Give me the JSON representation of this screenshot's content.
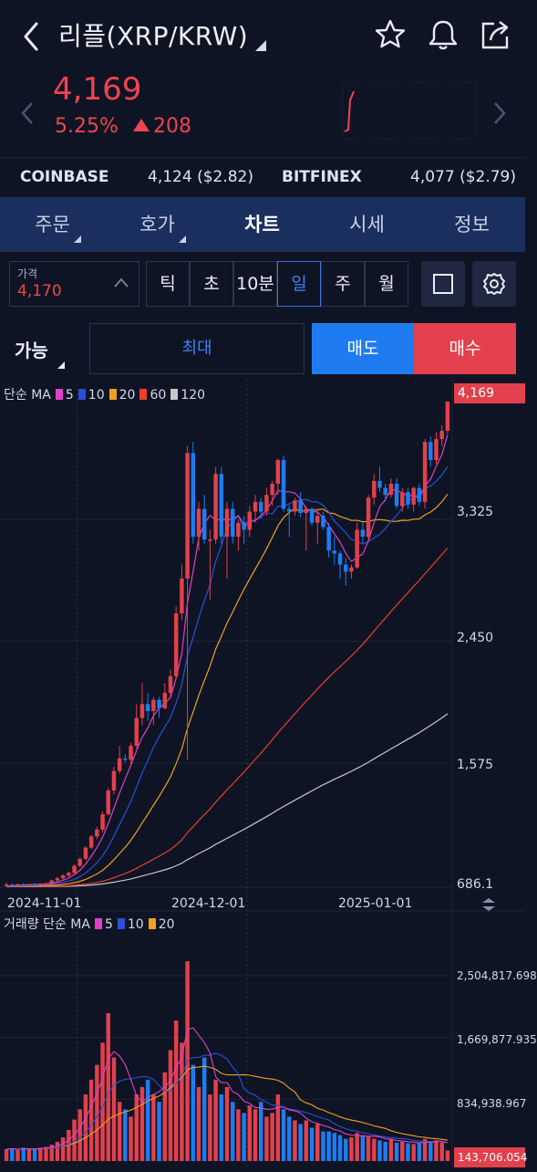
{
  "header": {
    "title": "리플(XRP/KRW)",
    "back_icon": "chevron-left-icon",
    "favorite_icon": "star-icon",
    "alert_icon": "bell-icon",
    "share_icon": "share-icon"
  },
  "ticker": {
    "price": "4,169",
    "change_percent": "5.25%",
    "change_amount": "208",
    "color_up": "#ef4450"
  },
  "exchanges": [
    {
      "name": "COINBASE",
      "value": "4,124 ($2.82)"
    },
    {
      "name": "BITFINEX",
      "value": "4,077 ($2.79)"
    }
  ],
  "tabs": [
    {
      "label": "주문",
      "dropdown": true
    },
    {
      "label": "호가",
      "dropdown": true
    },
    {
      "label": "차트",
      "dropdown": false,
      "active": true
    },
    {
      "label": "시세",
      "dropdown": false
    },
    {
      "label": "정보",
      "dropdown": false
    }
  ],
  "price_input": {
    "label": "가격",
    "value": "4,170"
  },
  "periods": [
    {
      "label": "틱"
    },
    {
      "label": "초"
    },
    {
      "label": "10분"
    },
    {
      "label": "일",
      "active": true
    },
    {
      "label": "주"
    },
    {
      "label": "월"
    }
  ],
  "order": {
    "available_label": "가능",
    "max_label": "최대",
    "sell_label": "매도",
    "buy_label": "매수"
  },
  "price_legend": {
    "prefix": "단순 MA",
    "items": [
      {
        "label": "5",
        "color": "#e040c8"
      },
      {
        "label": "10",
        "color": "#2b4fd8"
      },
      {
        "label": "20",
        "color": "#f0a020"
      },
      {
        "label": "60",
        "color": "#e8402c"
      },
      {
        "label": "120",
        "color": "#c8c8c8"
      }
    ]
  },
  "volume_legend": {
    "prefix": "거래량 단순 MA",
    "items": [
      {
        "label": "5",
        "color": "#e040c8"
      },
      {
        "label": "10",
        "color": "#2b4fd8"
      },
      {
        "label": "20",
        "color": "#f0a020"
      }
    ]
  },
  "chart_data": {
    "type": "candlestick",
    "current_price_label": "4,169",
    "price_axis": {
      "ticks": [
        "3,325",
        "2,450",
        "1,575",
        "686.1"
      ],
      "tick_values": [
        3325,
        2450,
        1575,
        686.1
      ],
      "range": [
        686.1,
        4169
      ]
    },
    "date_axis": {
      "ticks": [
        "2024-11-01",
        "2024-12-01",
        "2025-01-01"
      ]
    },
    "volume_axis": {
      "ticks": [
        "2,504,817.698",
        "1,669,877.935",
        "834,938.967",
        "143,706.054"
      ],
      "tick_values": [
        2504817.698,
        1669877.935,
        834938.967,
        143706.054
      ]
    },
    "current_volume_label": "143,706.054",
    "colors": {
      "up": "#e2404c",
      "down": "#1f7cf0"
    },
    "candles_ohlc": [
      [
        700,
        720,
        690,
        705
      ],
      [
        705,
        712,
        695,
        700
      ],
      [
        700,
        712,
        690,
        708
      ],
      [
        708,
        716,
        700,
        704
      ],
      [
        704,
        712,
        696,
        709
      ],
      [
        709,
        718,
        701,
        706
      ],
      [
        706,
        715,
        698,
        711
      ],
      [
        711,
        720,
        703,
        714
      ],
      [
        714,
        740,
        706,
        735
      ],
      [
        735,
        760,
        725,
        750
      ],
      [
        750,
        780,
        740,
        770
      ],
      [
        770,
        800,
        760,
        790
      ],
      [
        790,
        850,
        780,
        840
      ],
      [
        840,
        900,
        830,
        890
      ],
      [
        890,
        980,
        880,
        970
      ],
      [
        970,
        1060,
        960,
        1050
      ],
      [
        1050,
        1120,
        1030,
        1100
      ],
      [
        1100,
        1230,
        1080,
        1210
      ],
      [
        1210,
        1400,
        1200,
        1380
      ],
      [
        1380,
        1550,
        1350,
        1520
      ],
      [
        1520,
        1700,
        1500,
        1610
      ],
      [
        1610,
        1640,
        1580,
        1600
      ],
      [
        1600,
        1720,
        1550,
        1700
      ],
      [
        1700,
        2000,
        1680,
        1900
      ],
      [
        1900,
        2150,
        1850,
        2000
      ],
      [
        2000,
        2080,
        1880,
        1950
      ],
      [
        1950,
        2050,
        1850,
        2030
      ],
      [
        2030,
        2050,
        1900,
        1970
      ],
      [
        1970,
        2150,
        1960,
        2080
      ],
      [
        2080,
        2250,
        2050,
        2200
      ],
      [
        2200,
        2700,
        2180,
        2650
      ],
      [
        2650,
        3000,
        2600,
        2900
      ],
      [
        2900,
        3850,
        1600,
        3800
      ],
      [
        3800,
        3880,
        3150,
        3200
      ],
      [
        3200,
        3450,
        3100,
        3400
      ],
      [
        3400,
        3500,
        3150,
        3180
      ],
      [
        3180,
        3250,
        2750,
        3180
      ],
      [
        3180,
        3700,
        3150,
        3650
      ],
      [
        3650,
        3700,
        3150,
        3200
      ],
      [
        3200,
        3450,
        2900,
        3400
      ],
      [
        3400,
        3450,
        3150,
        3200
      ],
      [
        3200,
        3320,
        3100,
        3300
      ],
      [
        3300,
        3350,
        3150,
        3250
      ],
      [
        3250,
        3420,
        3200,
        3380
      ],
      [
        3380,
        3500,
        3300,
        3450
      ],
      [
        3450,
        3480,
        3330,
        3380
      ],
      [
        3380,
        3550,
        3350,
        3500
      ],
      [
        3500,
        3600,
        3420,
        3580
      ],
      [
        3580,
        3760,
        3500,
        3750
      ],
      [
        3750,
        3780,
        3380,
        3400
      ],
      [
        3400,
        3430,
        3200,
        3380
      ],
      [
        3380,
        3480,
        3350,
        3460
      ],
      [
        3460,
        3520,
        3340,
        3370
      ],
      [
        3370,
        3420,
        3100,
        3400
      ],
      [
        3400,
        3410,
        3280,
        3300
      ],
      [
        3300,
        3400,
        3150,
        3350
      ],
      [
        3350,
        3380,
        3250,
        3270
      ],
      [
        3270,
        3300,
        3050,
        3100
      ],
      [
        3100,
        3200,
        3000,
        3080
      ],
      [
        3080,
        3100,
        2900,
        3000
      ],
      [
        3000,
        3050,
        2850,
        2950
      ],
      [
        2950,
        3000,
        2900,
        2980
      ],
      [
        2980,
        3300,
        2970,
        3250
      ],
      [
        3250,
        3300,
        3150,
        3200
      ],
      [
        3200,
        3500,
        3180,
        3480
      ],
      [
        3480,
        3650,
        3430,
        3600
      ],
      [
        3600,
        3700,
        3520,
        3550
      ],
      [
        3550,
        3580,
        3450,
        3500
      ],
      [
        3500,
        3620,
        3480,
        3580
      ],
      [
        3580,
        3620,
        3400,
        3420
      ],
      [
        3420,
        3550,
        3380,
        3520
      ],
      [
        3520,
        3550,
        3400,
        3430
      ],
      [
        3430,
        3560,
        3380,
        3550
      ],
      [
        3550,
        3580,
        3420,
        3450
      ],
      [
        3450,
        3900,
        3400,
        3880
      ],
      [
        3880,
        3920,
        3700,
        3750
      ],
      [
        3750,
        3950,
        3720,
        3900
      ],
      [
        3900,
        4000,
        3850,
        3960
      ],
      [
        3960,
        4169,
        3940,
        4169
      ]
    ],
    "volumes": [
      160000,
      170000,
      150000,
      180000,
      160000,
      170000,
      180000,
      190000,
      220000,
      260000,
      320000,
      420000,
      560000,
      700000,
      900000,
      1100000,
      1300000,
      1600000,
      2000000,
      1400000,
      800000,
      700000,
      600000,
      900000,
      1000000,
      1100000,
      900000,
      800000,
      1200000,
      1500000,
      1900000,
      1600000,
      2700000,
      1300000,
      1000000,
      1400000,
      900000,
      1100000,
      900000,
      1000000,
      800000,
      700000,
      650000,
      750000,
      700000,
      800000,
      600000,
      650000,
      900000,
      700000,
      600000,
      550000,
      500000,
      550000,
      450000,
      500000,
      400000,
      400000,
      380000,
      350000,
      300000,
      320000,
      380000,
      350000,
      330000,
      300000,
      280000,
      260000,
      300000,
      250000,
      260000,
      240000,
      230000,
      250000,
      300000,
      260000,
      280000,
      250000,
      143706
    ]
  }
}
